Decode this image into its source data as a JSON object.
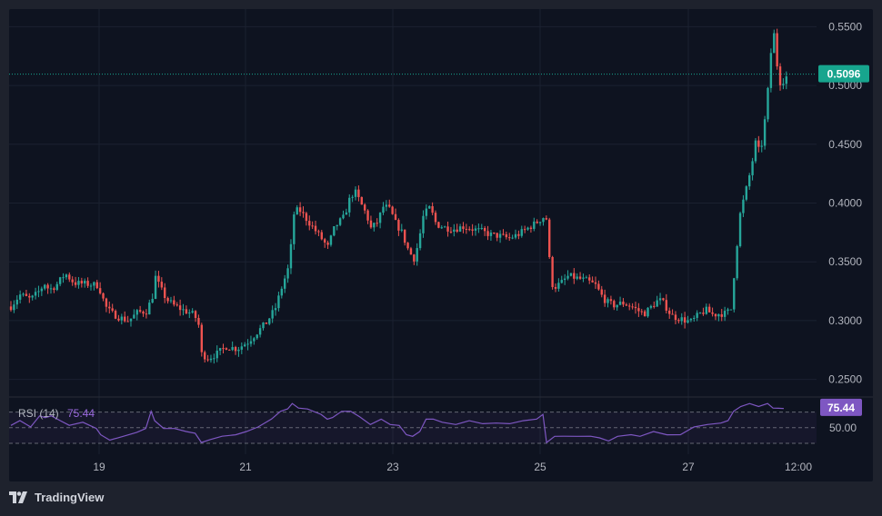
{
  "brand": {
    "name": "TradingView"
  },
  "colors": {
    "up": "#26a69a",
    "down": "#ef5350",
    "rsi_line": "#7e57c2",
    "price_tag": "#17a58e",
    "rsi_tag": "#7e57c2"
  },
  "chart_data": [
    {
      "type": "candlestick",
      "ylim": [
        0.235,
        0.565
      ],
      "y_ticks": [
        "0.5500",
        "0.5000",
        "0.4500",
        "0.4000",
        "0.3500",
        "0.3000",
        "0.2500"
      ],
      "x_ticks": [
        "19",
        "21",
        "23",
        "25",
        "27",
        "12:00"
      ],
      "last_price": "0.5096",
      "price_path": [
        [
          0,
          0.312
        ],
        [
          10,
          0.322
        ],
        [
          22,
          0.318
        ],
        [
          30,
          0.324
        ],
        [
          38,
          0.332
        ],
        [
          42,
          0.326
        ],
        [
          50,
          0.33
        ],
        [
          60,
          0.34
        ],
        [
          70,
          0.332
        ],
        [
          85,
          0.331
        ],
        [
          97,
          0.33
        ],
        [
          100,
          0.322
        ],
        [
          106,
          0.31
        ],
        [
          112,
          0.306
        ],
        [
          122,
          0.302
        ],
        [
          130,
          0.3
        ],
        [
          140,
          0.307
        ],
        [
          150,
          0.308
        ],
        [
          157,
          0.322
        ],
        [
          160,
          0.338
        ],
        [
          164,
          0.329
        ],
        [
          172,
          0.318
        ],
        [
          180,
          0.313
        ],
        [
          190,
          0.309
        ],
        [
          200,
          0.306
        ],
        [
          207,
          0.3
        ],
        [
          210,
          0.272
        ],
        [
          218,
          0.268
        ],
        [
          228,
          0.272
        ],
        [
          238,
          0.278
        ],
        [
          250,
          0.276
        ],
        [
          262,
          0.282
        ],
        [
          272,
          0.29
        ],
        [
          282,
          0.298
        ],
        [
          292,
          0.31
        ],
        [
          300,
          0.33
        ],
        [
          308,
          0.348
        ],
        [
          312,
          0.39
        ],
        [
          318,
          0.395
        ],
        [
          328,
          0.385
        ],
        [
          338,
          0.375
        ],
        [
          345,
          0.368
        ],
        [
          350,
          0.362
        ],
        [
          358,
          0.38
        ],
        [
          368,
          0.388
        ],
        [
          375,
          0.405
        ],
        [
          380,
          0.41
        ],
        [
          387,
          0.399
        ],
        [
          393,
          0.39
        ],
        [
          398,
          0.378
        ],
        [
          405,
          0.384
        ],
        [
          412,
          0.398
        ],
        [
          419,
          0.394
        ],
        [
          425,
          0.383
        ],
        [
          432,
          0.375
        ],
        [
          438,
          0.362
        ],
        [
          445,
          0.352
        ],
        [
          450,
          0.365
        ],
        [
          456,
          0.39
        ],
        [
          463,
          0.396
        ],
        [
          470,
          0.382
        ],
        [
          480,
          0.379
        ],
        [
          490,
          0.378
        ],
        [
          500,
          0.38
        ],
        [
          510,
          0.378
        ],
        [
          520,
          0.376
        ],
        [
          530,
          0.373
        ],
        [
          540,
          0.372
        ],
        [
          550,
          0.37
        ],
        [
          560,
          0.373
        ],
        [
          570,
          0.378
        ],
        [
          580,
          0.383
        ],
        [
          588,
          0.388
        ],
        [
          593,
          0.386
        ],
        [
          596,
          0.335
        ],
        [
          600,
          0.328
        ],
        [
          608,
          0.332
        ],
        [
          616,
          0.338
        ],
        [
          626,
          0.336
        ],
        [
          636,
          0.334
        ],
        [
          646,
          0.33
        ],
        [
          652,
          0.322
        ],
        [
          658,
          0.316
        ],
        [
          666,
          0.313
        ],
        [
          676,
          0.315
        ],
        [
          686,
          0.312
        ],
        [
          694,
          0.308
        ],
        [
          700,
          0.306
        ],
        [
          708,
          0.312
        ],
        [
          716,
          0.318
        ],
        [
          722,
          0.314
        ],
        [
          730,
          0.304
        ],
        [
          738,
          0.302
        ],
        [
          746,
          0.3
        ],
        [
          752,
          0.299
        ],
        [
          760,
          0.305
        ],
        [
          768,
          0.309
        ],
        [
          776,
          0.305
        ],
        [
          784,
          0.306
        ],
        [
          790,
          0.306
        ],
        [
          796,
          0.31
        ],
        [
          800,
          0.348
        ],
        [
          806,
          0.392
        ],
        [
          812,
          0.41
        ],
        [
          818,
          0.43
        ],
        [
          823,
          0.452
        ],
        [
          828,
          0.441
        ],
        [
          833,
          0.47
        ],
        [
          837,
          0.5
        ],
        [
          840,
          0.53
        ],
        [
          843,
          0.545
        ],
        [
          846,
          0.52
        ],
        [
          850,
          0.503
        ],
        [
          855,
          0.505
        ],
        [
          858,
          0.509
        ]
      ]
    },
    {
      "type": "line",
      "title": "RSI (14)",
      "value_label": "75.44",
      "level_label": "50.00",
      "ylim": [
        30,
        80
      ],
      "levels": [
        70,
        50,
        30
      ],
      "series_path": [
        [
          0,
          52
        ],
        [
          10,
          60
        ],
        [
          22,
          50
        ],
        [
          32,
          66
        ],
        [
          38,
          62
        ],
        [
          45,
          66
        ],
        [
          55,
          58
        ],
        [
          65,
          54
        ],
        [
          80,
          56
        ],
        [
          95,
          50
        ],
        [
          100,
          40
        ],
        [
          110,
          35
        ],
        [
          125,
          38
        ],
        [
          140,
          45
        ],
        [
          150,
          48
        ],
        [
          156,
          72
        ],
        [
          160,
          58
        ],
        [
          170,
          50
        ],
        [
          182,
          48
        ],
        [
          195,
          46
        ],
        [
          205,
          42
        ],
        [
          212,
          32
        ],
        [
          222,
          34
        ],
        [
          235,
          40
        ],
        [
          250,
          40
        ],
        [
          262,
          46
        ],
        [
          275,
          50
        ],
        [
          290,
          62
        ],
        [
          300,
          70
        ],
        [
          308,
          75
        ],
        [
          313,
          80
        ],
        [
          320,
          76
        ],
        [
          330,
          73
        ],
        [
          345,
          68
        ],
        [
          352,
          60
        ],
        [
          358,
          64
        ],
        [
          368,
          70
        ],
        [
          378,
          72
        ],
        [
          388,
          63
        ],
        [
          400,
          55
        ],
        [
          412,
          60
        ],
        [
          422,
          55
        ],
        [
          432,
          52
        ],
        [
          440,
          42
        ],
        [
          447,
          38
        ],
        [
          455,
          46
        ],
        [
          462,
          60
        ],
        [
          470,
          62
        ],
        [
          480,
          56
        ],
        [
          495,
          55
        ],
        [
          510,
          58
        ],
        [
          525,
          56
        ],
        [
          540,
          55
        ],
        [
          555,
          56
        ],
        [
          570,
          58
        ],
        [
          585,
          62
        ],
        [
          592,
          66
        ],
        [
          596,
          32
        ],
        [
          605,
          38
        ],
        [
          615,
          40
        ],
        [
          630,
          38
        ],
        [
          645,
          40
        ],
        [
          655,
          36
        ],
        [
          665,
          34
        ],
        [
          675,
          38
        ],
        [
          690,
          42
        ],
        [
          700,
          38
        ],
        [
          715,
          46
        ],
        [
          730,
          40
        ],
        [
          745,
          42
        ],
        [
          760,
          50
        ],
        [
          775,
          55
        ],
        [
          790,
          55
        ],
        [
          798,
          60
        ],
        [
          804,
          70
        ],
        [
          812,
          78
        ],
        [
          822,
          80
        ],
        [
          832,
          78
        ],
        [
          842,
          80
        ],
        [
          848,
          76
        ],
        [
          854,
          74
        ],
        [
          860,
          75.44
        ]
      ]
    }
  ]
}
